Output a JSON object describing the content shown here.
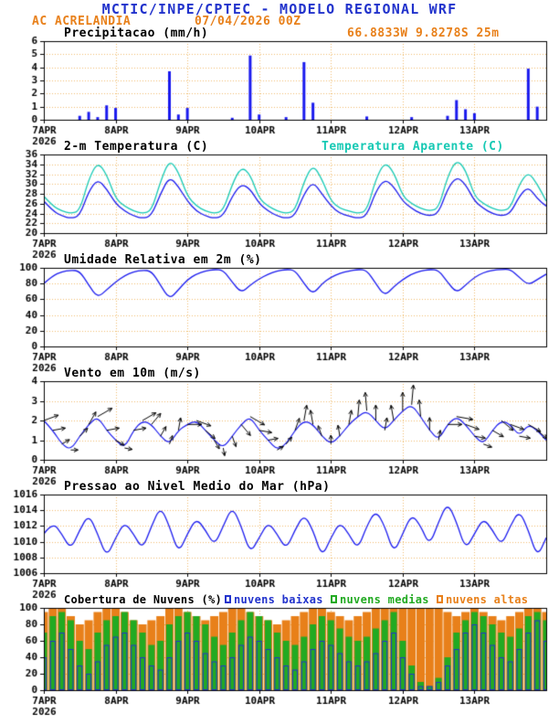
{
  "header": {
    "title": "MCTIC/INPE/CPTEC - MODELO REGIONAL WRF",
    "station": "AC ACRELANDIA",
    "run": "07/04/2026 00Z",
    "location": "66.8833W 9.8278S 25m"
  },
  "colors": {
    "header_blue": "#2233cc",
    "orange": "#e8801a",
    "cyan": "#17c9b4",
    "line_blue": "#1a1aee",
    "grid": "rgba(235,170,70,0.8)"
  },
  "x_axis": {
    "tick_labels": [
      "7APR",
      "8APR",
      "9APR",
      "10APR",
      "11APR",
      "12APR",
      "13APR"
    ],
    "year": "2026",
    "span_days": 7
  },
  "chart_data": [
    {
      "type": "bar",
      "title": "Precipitacao (mm/h)",
      "ylim": [
        0,
        6
      ],
      "yticks": [
        0,
        1,
        2,
        3,
        4,
        5,
        6
      ],
      "color": "#1a1aee",
      "values": [
        0,
        0,
        0,
        0,
        0.3,
        0.6,
        0.2,
        1.1,
        0.9,
        0,
        0,
        0,
        0,
        0,
        3.7,
        0.4,
        0.9,
        0,
        0,
        0,
        0,
        0.15,
        0,
        4.9,
        0.4,
        0,
        0,
        0.2,
        0,
        4.4,
        1.3,
        0,
        0,
        0,
        0,
        0,
        0.25,
        0,
        0,
        0,
        0,
        0.2,
        0,
        0,
        0,
        0.3,
        1.5,
        0.8,
        0.5,
        0,
        0,
        0,
        0,
        0,
        3.9,
        1.0,
        0
      ]
    },
    {
      "type": "line",
      "title": "2-m Temperatura (C)",
      "title_right": "Temperatura Aparente (C)",
      "ylim": [
        20,
        36
      ],
      "yticks": [
        20,
        22,
        24,
        26,
        28,
        30,
        32,
        34,
        36
      ],
      "series": [
        {
          "name": "2-m Temperatura (C)",
          "color": "#1a1aee",
          "values": [
            26.5,
            24.5,
            23.5,
            23,
            23.5,
            28.5,
            31,
            29,
            26,
            24.5,
            23.5,
            23,
            23.5,
            28,
            31.5,
            29.5,
            26.5,
            24.5,
            23.5,
            23,
            23.5,
            27.5,
            30,
            29,
            26,
            24.5,
            23.5,
            23,
            23.5,
            28,
            30.5,
            28,
            25.5,
            24,
            23.5,
            23,
            23.5,
            28.5,
            31,
            29.5,
            26.5,
            25,
            24,
            23.5,
            24,
            29,
            31.5,
            30,
            26.5,
            25,
            24,
            23.5,
            24,
            27.5,
            29.5,
            27,
            25.5
          ]
        },
        {
          "name": "Temperatura Aparente (C)",
          "color": "#17c9b4",
          "values": [
            27.5,
            25.5,
            24.5,
            24,
            24.5,
            31,
            34.5,
            32,
            27,
            25.5,
            24.5,
            24,
            24.5,
            30.5,
            35,
            32.5,
            27.5,
            25.5,
            24.5,
            24,
            24.5,
            30,
            33.5,
            32,
            27,
            25.5,
            24.5,
            24,
            24.5,
            30.5,
            34,
            31,
            26.5,
            25,
            24.5,
            24,
            24.5,
            31,
            34.5,
            32.5,
            27.5,
            26,
            25,
            24.5,
            25,
            31.5,
            35,
            33,
            27.5,
            26,
            25,
            24.5,
            25,
            30,
            32.5,
            30,
            26.5
          ]
        }
      ]
    },
    {
      "type": "line",
      "title": "Umidade Relativa em 2m (%)",
      "ylim": [
        0,
        100
      ],
      "yticks": [
        0,
        20,
        40,
        60,
        80,
        100
      ],
      "series": [
        {
          "name": "Umidade Relativa em 2m (%)",
          "color": "#1a1aee",
          "values": [
            80,
            90,
            95,
            97,
            96,
            78,
            62,
            72,
            82,
            90,
            95,
            97,
            96,
            78,
            60,
            72,
            85,
            92,
            96,
            98,
            97,
            82,
            68,
            78,
            86,
            92,
            96,
            98,
            97,
            80,
            66,
            80,
            88,
            93,
            96,
            98,
            97,
            80,
            64,
            76,
            85,
            92,
            96,
            98,
            97,
            82,
            68,
            78,
            88,
            94,
            97,
            98,
            98,
            88,
            78,
            85,
            92
          ]
        }
      ]
    },
    {
      "type": "wind",
      "title": "Vento em 10m (m/s)",
      "ylim": [
        0,
        4
      ],
      "yticks": [
        0,
        1,
        2,
        3,
        4
      ],
      "speed_color": "#1a1aee",
      "arrow_color": "#000000",
      "speed": [
        2,
        1.5,
        0.8,
        0.5,
        1.2,
        1.8,
        2.2,
        1.5,
        1,
        0.6,
        1.5,
        2,
        1.8,
        1.2,
        0.8,
        1.5,
        1.8,
        2,
        1.5,
        1,
        0.6,
        1.2,
        1.8,
        2.2,
        1.5,
        1,
        0.5,
        0.8,
        1.5,
        2,
        1.8,
        1.2,
        0.8,
        1.2,
        1.8,
        2.2,
        2.5,
        2,
        1.5,
        2,
        2.5,
        2.8,
        2.2,
        1.5,
        1,
        1.8,
        2.2,
        1.8,
        1.2,
        0.8,
        1.5,
        2,
        1.8,
        1.2,
        1.8,
        1.5,
        1
      ],
      "direction_deg": [
        70,
        80,
        60,
        90,
        45,
        30,
        60,
        80,
        120,
        100,
        80,
        60,
        40,
        30,
        20,
        10,
        90,
        110,
        130,
        150,
        170,
        160,
        140,
        120,
        100,
        80,
        60,
        40,
        20,
        10,
        350,
        340,
        0,
        350,
        10,
        5,
        355,
        0,
        10,
        350,
        0,
        5,
        355,
        0,
        10,
        90,
        100,
        110,
        100,
        110,
        120,
        130,
        110,
        100,
        120,
        130,
        120
      ]
    },
    {
      "type": "line",
      "title": "Pressao ao Nivel Medio do Mar (hPa)",
      "ylim": [
        1006,
        1016
      ],
      "yticks": [
        1006,
        1008,
        1010,
        1012,
        1014,
        1016
      ],
      "series": [
        {
          "name": "Pressao ao Nivel Medio do Mar (hPa)",
          "color": "#1a1aee",
          "values": [
            1011,
            1012.5,
            1011,
            1009,
            1011.5,
            1013.5,
            1011,
            1008,
            1010.5,
            1012.5,
            1011,
            1009,
            1012,
            1014.5,
            1012,
            1008.5,
            1011,
            1013,
            1011.5,
            1009.5,
            1012,
            1014.5,
            1012,
            1008.5,
            1010.5,
            1012.5,
            1011,
            1009,
            1011.5,
            1013.5,
            1011.5,
            1008,
            1010.5,
            1012.5,
            1011,
            1009,
            1012,
            1014,
            1012,
            1008.5,
            1011,
            1013.5,
            1012,
            1009.5,
            1012.5,
            1015,
            1012.5,
            1009,
            1011,
            1013,
            1011.5,
            1009.5,
            1012,
            1014,
            1011.5,
            1008,
            1010.5
          ]
        }
      ]
    },
    {
      "type": "cloud",
      "title": "Cobertura de Nuvens (%)",
      "ylim": [
        0,
        100
      ],
      "yticks": [
        0,
        20,
        40,
        60,
        80,
        100
      ],
      "series": [
        {
          "label": "nuvens baixas",
          "color": "#2233cc",
          "values": [
            40,
            60,
            70,
            50,
            30,
            20,
            35,
            55,
            65,
            70,
            55,
            40,
            30,
            25,
            40,
            60,
            70,
            60,
            45,
            35,
            30,
            40,
            55,
            65,
            60,
            50,
            40,
            30,
            25,
            35,
            50,
            60,
            55,
            45,
            35,
            30,
            35,
            45,
            60,
            70,
            40,
            20,
            5,
            5,
            10,
            30,
            50,
            70,
            80,
            70,
            55,
            40,
            35,
            50,
            70,
            85,
            60
          ]
        },
        {
          "label": "nuvens medias",
          "color": "#22aa22",
          "values": [
            70,
            90,
            95,
            85,
            60,
            50,
            70,
            85,
            90,
            95,
            85,
            70,
            55,
            60,
            80,
            90,
            95,
            90,
            80,
            65,
            55,
            70,
            85,
            95,
            90,
            85,
            70,
            60,
            55,
            65,
            80,
            90,
            85,
            75,
            65,
            60,
            65,
            75,
            85,
            95,
            60,
            30,
            10,
            5,
            15,
            40,
            70,
            85,
            95,
            90,
            80,
            70,
            65,
            75,
            90,
            95,
            85
          ]
        },
        {
          "label": "nuvens altas",
          "color": "#e8801a",
          "values": [
            95,
            100,
            100,
            90,
            80,
            85,
            95,
            100,
            100,
            95,
            85,
            80,
            85,
            90,
            100,
            100,
            95,
            90,
            85,
            90,
            95,
            100,
            100,
            95,
            90,
            85,
            80,
            85,
            90,
            95,
            100,
            100,
            95,
            90,
            85,
            90,
            95,
            100,
            100,
            100,
            100,
            100,
            100,
            100,
            100,
            95,
            90,
            95,
            100,
            95,
            90,
            85,
            90,
            95,
            100,
            100,
            95
          ]
        }
      ]
    }
  ]
}
